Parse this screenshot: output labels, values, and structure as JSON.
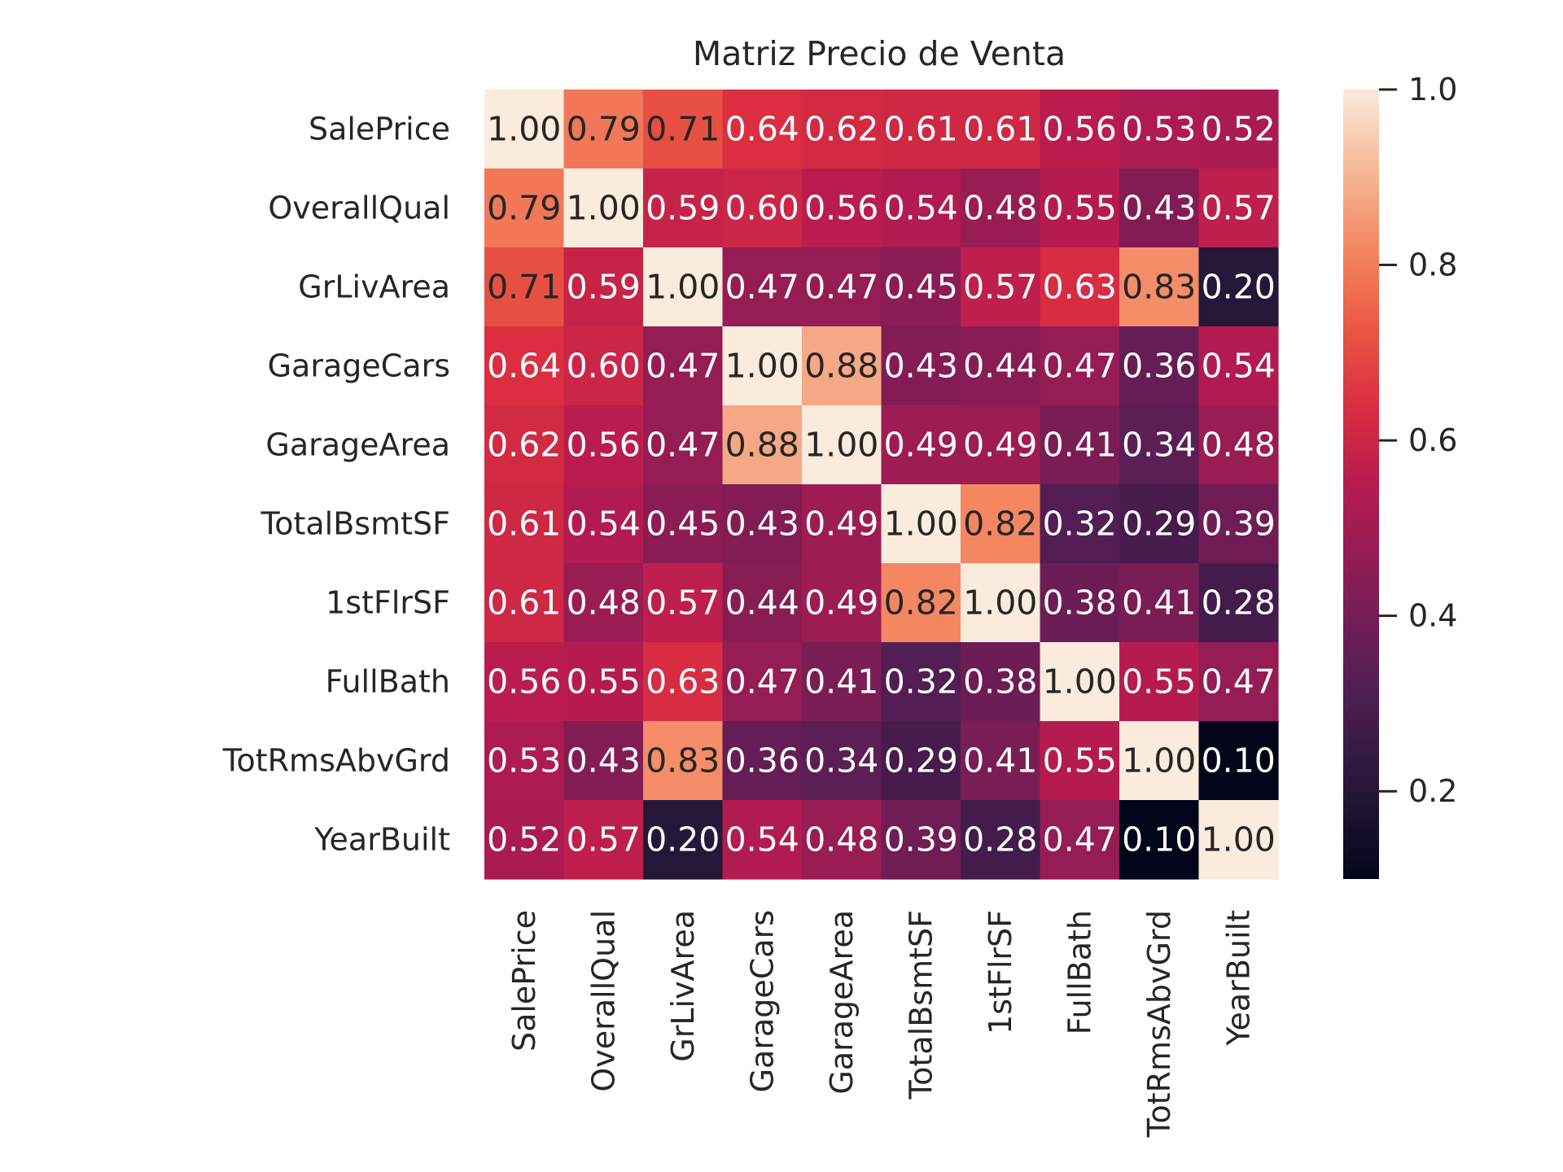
{
  "chart_data": {
    "type": "heatmap",
    "title": "Matriz Precio de Venta",
    "xlabel": "",
    "ylabel": "",
    "variables": [
      "SalePrice",
      "OverallQual",
      "GrLivArea",
      "GarageCars",
      "GarageArea",
      "TotalBsmtSF",
      "1stFlrSF",
      "FullBath",
      "TotRmsAbvGrd",
      "YearBuilt"
    ],
    "values": [
      [
        1.0,
        0.79,
        0.71,
        0.64,
        0.62,
        0.61,
        0.61,
        0.56,
        0.53,
        0.52
      ],
      [
        0.79,
        1.0,
        0.59,
        0.6,
        0.56,
        0.54,
        0.48,
        0.55,
        0.43,
        0.57
      ],
      [
        0.71,
        0.59,
        1.0,
        0.47,
        0.47,
        0.45,
        0.57,
        0.63,
        0.83,
        0.2
      ],
      [
        0.64,
        0.6,
        0.47,
        1.0,
        0.88,
        0.43,
        0.44,
        0.47,
        0.36,
        0.54
      ],
      [
        0.62,
        0.56,
        0.47,
        0.88,
        1.0,
        0.49,
        0.49,
        0.41,
        0.34,
        0.48
      ],
      [
        0.61,
        0.54,
        0.45,
        0.43,
        0.49,
        1.0,
        0.82,
        0.32,
        0.29,
        0.39
      ],
      [
        0.61,
        0.48,
        0.57,
        0.44,
        0.49,
        0.82,
        1.0,
        0.38,
        0.41,
        0.28
      ],
      [
        0.56,
        0.55,
        0.63,
        0.47,
        0.41,
        0.32,
        0.38,
        1.0,
        0.55,
        0.47
      ],
      [
        0.53,
        0.43,
        0.83,
        0.36,
        0.34,
        0.29,
        0.41,
        0.55,
        1.0,
        0.1
      ],
      [
        0.52,
        0.57,
        0.2,
        0.54,
        0.48,
        0.39,
        0.28,
        0.47,
        0.1,
        1.0
      ]
    ],
    "value_format_decimals": 2,
    "colormap": "rocket",
    "colorbar": {
      "range": [
        0.1,
        1.0
      ],
      "ticks": [
        0.2,
        0.4,
        0.6,
        0.8,
        1.0
      ],
      "tick_labels": [
        "0.2",
        "0.4",
        "0.6",
        "0.8",
        "1.0"
      ]
    },
    "colors": {
      "text_on_dark": "#ffffff",
      "text_on_light": "#262626",
      "axis_text": "#262626"
    }
  }
}
